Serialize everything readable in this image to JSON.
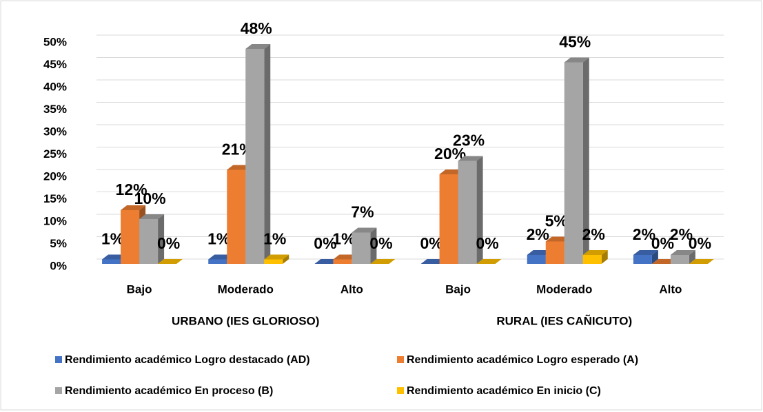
{
  "chart_data": {
    "type": "bar3d",
    "categories": [
      "Bajo",
      "Moderado",
      "Alto",
      "Bajo",
      "Moderado",
      "Alto"
    ],
    "group_labels": [
      "URBANO (IES GLORIOSO)",
      "RURAL (IES CAÑICUTO)"
    ],
    "series": [
      {
        "name": "Rendimiento académico Logro destacado (AD)",
        "color": "#4472c4",
        "values": [
          1,
          1,
          0,
          0,
          2,
          2
        ],
        "value_labels": [
          "1%",
          "1%",
          "0%",
          "0%",
          "2%",
          "2%"
        ]
      },
      {
        "name": "Rendimiento académico Logro esperado (A)",
        "color": "#ed7d31",
        "values": [
          12,
          21,
          1,
          20,
          5,
          0
        ],
        "value_labels": [
          "12%",
          "21%",
          "1%",
          "20%",
          "5%",
          "0%"
        ]
      },
      {
        "name": "Rendimiento académico En proceso (B)",
        "color": "#a5a5a5",
        "values": [
          10,
          48,
          7,
          23,
          45,
          2
        ],
        "value_labels": [
          "10%",
          "48%",
          "7%",
          "23%",
          "45%",
          "2%"
        ]
      },
      {
        "name": "Rendimiento académico En inicio (C)",
        "color": "#ffc000",
        "values": [
          0,
          1,
          0,
          0,
          2,
          0
        ],
        "value_labels": [
          "0%",
          "1%",
          "0%",
          "0%",
          "2%",
          "0%"
        ]
      }
    ],
    "ylim": [
      0,
      50
    ],
    "yticks": [
      {
        "value": 0,
        "label": "0%"
      },
      {
        "value": 5,
        "label": "5%"
      },
      {
        "value": 10,
        "label": "10%"
      },
      {
        "value": 15,
        "label": "15%"
      },
      {
        "value": 20,
        "label": "20%"
      },
      {
        "value": 25,
        "label": "25%"
      },
      {
        "value": 30,
        "label": "30%"
      },
      {
        "value": 35,
        "label": "35%"
      },
      {
        "value": 40,
        "label": "40%"
      },
      {
        "value": 45,
        "label": "45%"
      },
      {
        "value": 50,
        "label": "50%"
      }
    ],
    "grid": true
  }
}
